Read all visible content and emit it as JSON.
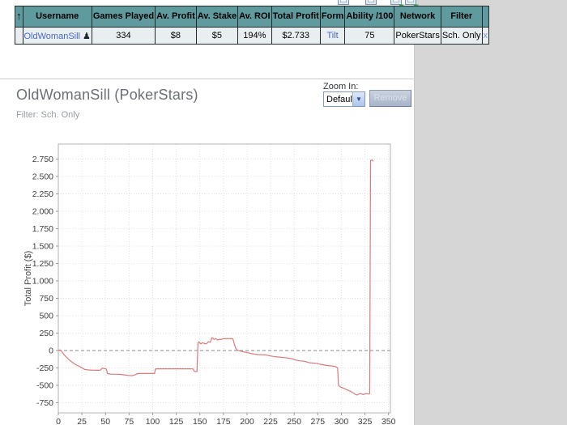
{
  "toolbar_icons": [
    {
      "name": "copy-window-icon"
    },
    {
      "name": "table-view-icon"
    },
    {
      "name": "export-icon"
    },
    {
      "name": "share-icon"
    }
  ],
  "results_table": {
    "sort_icon_glyph": "↑",
    "player_icon_glyph": "♟",
    "headers": {
      "username": "Username",
      "games_played": "Games Played",
      "av_profit": "Av. Profit",
      "av_stake": "Av. Stake",
      "av_roi": "Av. ROI",
      "total_profit": "Total Profit",
      "form": "Form",
      "ability": "Ability /100",
      "network": "Network",
      "filter": "Filter"
    },
    "row": {
      "username": "OldWomanSill",
      "games_played": "334",
      "av_profit": "$8",
      "av_stake": "$5",
      "av_roi": "194%",
      "total_profit": "$2.733",
      "form": "Tilt",
      "ability": "75",
      "network": "PokerStars",
      "filter": "Sch. Only",
      "remove": "x"
    }
  },
  "profile": {
    "title": "OldWomanSill (PokerStars)",
    "filter_line": "Filter: Sch. Only"
  },
  "zoom_controls": {
    "label": "Zoom In:",
    "selected_option": "Default",
    "dropdown_arrow": "▼",
    "remove_label": "Remove"
  },
  "chart_data": {
    "type": "line",
    "title": "",
    "xlabel": "",
    "ylabel": "Total Profit ($)",
    "xlim": [
      0,
      352
    ],
    "ylim": [
      -895,
      2965
    ],
    "x_ticks": [
      0,
      25,
      50,
      75,
      100,
      125,
      150,
      175,
      200,
      225,
      250,
      275,
      300,
      325,
      350
    ],
    "y_ticks": [
      {
        "value": -750,
        "label": "-750"
      },
      {
        "value": -500,
        "label": "-500"
      },
      {
        "value": -250,
        "label": "-250"
      },
      {
        "value": 0,
        "label": "0"
      },
      {
        "value": 250,
        "label": "250"
      },
      {
        "value": 500,
        "label": "500"
      },
      {
        "value": 750,
        "label": "750"
      },
      {
        "value": 1000,
        "label": "1.000"
      },
      {
        "value": 1250,
        "label": "1.250"
      },
      {
        "value": 1500,
        "label": "1.500"
      },
      {
        "value": 1750,
        "label": "1.750"
      },
      {
        "value": 2000,
        "label": "2.000"
      },
      {
        "value": 2250,
        "label": "2.250"
      },
      {
        "value": 2500,
        "label": "2.500"
      },
      {
        "value": 2750,
        "label": "2.750"
      }
    ],
    "grid": true,
    "zero_line": "dashed",
    "line_color": "#d97b7b",
    "series": [
      {
        "name": "Total Profit",
        "points": [
          [
            0,
            0
          ],
          [
            2,
            10
          ],
          [
            4,
            -20
          ],
          [
            6,
            -60
          ],
          [
            9,
            -100
          ],
          [
            12,
            -140
          ],
          [
            15,
            -170
          ],
          [
            18,
            -200
          ],
          [
            21,
            -220
          ],
          [
            24,
            -240
          ],
          [
            26,
            -255
          ],
          [
            28,
            -272
          ],
          [
            31,
            -278
          ],
          [
            34,
            -280
          ],
          [
            37,
            -282
          ],
          [
            40,
            -283
          ],
          [
            43,
            -283
          ],
          [
            45,
            -278
          ],
          [
            46,
            -258
          ],
          [
            47,
            -252
          ],
          [
            48,
            -258
          ],
          [
            50,
            -262
          ],
          [
            51,
            -268
          ],
          [
            52,
            -330
          ],
          [
            55,
            -338
          ],
          [
            60,
            -340
          ],
          [
            65,
            -342
          ],
          [
            70,
            -350
          ],
          [
            74,
            -358
          ],
          [
            78,
            -360
          ],
          [
            80,
            -355
          ],
          [
            82,
            -345
          ],
          [
            84,
            -332
          ],
          [
            86,
            -330
          ],
          [
            92,
            -330
          ],
          [
            98,
            -330
          ],
          [
            102,
            -330
          ],
          [
            103,
            -262
          ],
          [
            110,
            -262
          ],
          [
            120,
            -262
          ],
          [
            130,
            -262
          ],
          [
            140,
            -262
          ],
          [
            143,
            -265
          ],
          [
            144,
            -298
          ],
          [
            147,
            -302
          ],
          [
            148,
            110
          ],
          [
            149,
            125
          ],
          [
            151,
            95
          ],
          [
            153,
            112
          ],
          [
            155,
            100
          ],
          [
            157,
            96
          ],
          [
            159,
            128
          ],
          [
            161,
            118
          ],
          [
            163,
            188
          ],
          [
            165,
            158
          ],
          [
            167,
            172
          ],
          [
            169,
            150
          ],
          [
            171,
            162
          ],
          [
            173,
            160
          ],
          [
            175,
            172
          ],
          [
            178,
            170
          ],
          [
            182,
            172
          ],
          [
            185,
            170
          ],
          [
            186,
            120
          ],
          [
            188,
            30
          ],
          [
            190,
            2
          ],
          [
            193,
            -8
          ],
          [
            196,
            -18
          ],
          [
            200,
            -28
          ],
          [
            204,
            -42
          ],
          [
            208,
            -52
          ],
          [
            212,
            -58
          ],
          [
            216,
            -60
          ],
          [
            220,
            -62
          ],
          [
            224,
            -75
          ],
          [
            228,
            -85
          ],
          [
            232,
            -92
          ],
          [
            236,
            -98
          ],
          [
            240,
            -102
          ],
          [
            244,
            -110
          ],
          [
            248,
            -120
          ],
          [
            252,
            -138
          ],
          [
            256,
            -148
          ],
          [
            260,
            -152
          ],
          [
            263,
            -162
          ],
          [
            266,
            -175
          ],
          [
            270,
            -180
          ],
          [
            274,
            -184
          ],
          [
            278,
            -198
          ],
          [
            282,
            -208
          ],
          [
            286,
            -216
          ],
          [
            290,
            -222
          ],
          [
            293,
            -228
          ],
          [
            295,
            -240
          ],
          [
            296,
            -248
          ],
          [
            297,
            -495
          ],
          [
            298,
            -515
          ],
          [
            300,
            -528
          ],
          [
            303,
            -545
          ],
          [
            306,
            -562
          ],
          [
            309,
            -582
          ],
          [
            311,
            -595
          ],
          [
            313,
            -612
          ],
          [
            315,
            -632
          ],
          [
            317,
            -638
          ],
          [
            319,
            -622
          ],
          [
            321,
            -618
          ],
          [
            323,
            -632
          ],
          [
            325,
            -622
          ],
          [
            327,
            -618
          ],
          [
            329,
            -625
          ],
          [
            330,
            -620
          ],
          [
            331,
            2733
          ],
          [
            333,
            2733
          ],
          [
            334,
            2720
          ]
        ]
      }
    ]
  }
}
